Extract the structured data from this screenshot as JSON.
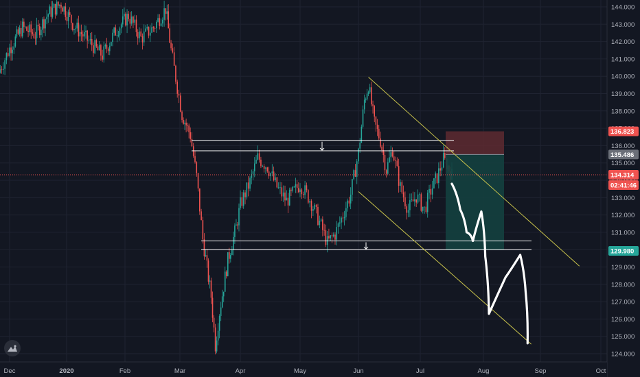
{
  "chart_data": {
    "type": "candlestick",
    "title": "",
    "xlabel": "",
    "ylabel": "",
    "ylim": [
      123.8,
      144.3
    ],
    "x_ticks": [
      "Dec",
      "2020",
      "Feb",
      "Mar",
      "Apr",
      "May",
      "Jun",
      "Jul",
      "Aug",
      "Sep",
      "Oct"
    ],
    "y_ticks": [
      124.0,
      125.0,
      126.0,
      127.0,
      128.0,
      129.0,
      130.0,
      131.0,
      132.0,
      133.0,
      134.0,
      135.0,
      136.0,
      137.0,
      138.0,
      139.0,
      140.0,
      141.0,
      142.0,
      143.0,
      144.0
    ],
    "price_path": [
      {
        "date": "Nov 25",
        "close": 140.2
      },
      {
        "date": "Dec 01",
        "close": 141.6
      },
      {
        "date": "Dec 08",
        "close": 142.8
      },
      {
        "date": "Dec 15",
        "close": 142.4
      },
      {
        "date": "Dec 22",
        "close": 143.6
      },
      {
        "date": "Dec 29",
        "close": 144.2
      },
      {
        "date": "Jan 05",
        "close": 142.9
      },
      {
        "date": "Jan 12",
        "close": 142.1
      },
      {
        "date": "Jan 20",
        "close": 141.2
      },
      {
        "date": "Jan 27",
        "close": 142.6
      },
      {
        "date": "Feb 03",
        "close": 143.5
      },
      {
        "date": "Feb 10",
        "close": 142.2
      },
      {
        "date": "Feb 17",
        "close": 142.8
      },
      {
        "date": "Feb 24",
        "close": 143.9
      },
      {
        "date": "Feb 27",
        "close": 141.5
      },
      {
        "date": "Mar 02",
        "close": 137.8
      },
      {
        "date": "Mar 06",
        "close": 136.6
      },
      {
        "date": "Mar 09",
        "close": 134.2
      },
      {
        "date": "Mar 12",
        "close": 130.6
      },
      {
        "date": "Mar 16",
        "close": 127.3
      },
      {
        "date": "Mar 18",
        "close": 124.5
      },
      {
        "date": "Mar 20",
        "close": 126.4
      },
      {
        "date": "Mar 24",
        "close": 129.4
      },
      {
        "date": "Mar 28",
        "close": 131.3
      },
      {
        "date": "Apr 01",
        "close": 132.6
      },
      {
        "date": "Apr 06",
        "close": 133.9
      },
      {
        "date": "Apr 10",
        "close": 135.3
      },
      {
        "date": "Apr 15",
        "close": 134.8
      },
      {
        "date": "Apr 20",
        "close": 133.6
      },
      {
        "date": "Apr 25",
        "close": 132.8
      },
      {
        "date": "May 01",
        "close": 133.8
      },
      {
        "date": "May 06",
        "close": 132.9
      },
      {
        "date": "May 11",
        "close": 131.6
      },
      {
        "date": "May 15",
        "close": 130.4
      },
      {
        "date": "May 19",
        "close": 130.9
      },
      {
        "date": "May 23",
        "close": 132.0
      },
      {
        "date": "May 27",
        "close": 133.2
      },
      {
        "date": "Jun 01",
        "close": 135.6
      },
      {
        "date": "Jun 04",
        "close": 138.6
      },
      {
        "date": "Jun 06",
        "close": 139.5
      },
      {
        "date": "Jun 09",
        "close": 137.3
      },
      {
        "date": "Jun 12",
        "close": 136.3
      },
      {
        "date": "Jun 15",
        "close": 134.6
      },
      {
        "date": "Jun 18",
        "close": 135.8
      },
      {
        "date": "Jun 22",
        "close": 133.6
      },
      {
        "date": "Jun 26",
        "close": 132.3
      },
      {
        "date": "Jun 30",
        "close": 133.1
      },
      {
        "date": "Jul 03",
        "close": 132.3
      },
      {
        "date": "Jul 06",
        "close": 133.4
      },
      {
        "date": "Jul 09",
        "close": 134.2
      },
      {
        "date": "Jul 12",
        "close": 135.2
      },
      {
        "date": "Jul 14",
        "close": 134.8
      },
      {
        "date": "Jul 16",
        "close": 134.3
      }
    ],
    "levels": {
      "last_price": "134.314",
      "countdown": "02:41:46",
      "stop": "136.823",
      "entry": "135.486",
      "target": "129.980"
    },
    "zones": [
      {
        "from": 135.7,
        "to": 136.3
      },
      {
        "from": 130.0,
        "to": 130.5
      }
    ],
    "channel": {
      "upper": [
        {
          "date": "Jun 06",
          "price": 139.95
        },
        {
          "date": "Sep 21",
          "price": 129.05
        }
      ],
      "lower": [
        {
          "date": "Jun 01",
          "price": 133.35
        },
        {
          "date": "Aug 27",
          "price": 124.55
        }
      ]
    },
    "projection": [
      {
        "date": "Jul 16",
        "price": 133.8
      },
      {
        "date": "Jul 20",
        "price": 132.3
      },
      {
        "date": "Jul 23",
        "price": 131.0
      },
      {
        "date": "Jul 26",
        "price": 130.5
      },
      {
        "date": "Jul 30",
        "price": 132.2
      },
      {
        "date": "Aug 02",
        "price": 129.6
      },
      {
        "date": "Aug 04",
        "price": 126.3
      },
      {
        "date": "Aug 13",
        "price": 128.4
      },
      {
        "date": "Aug 21",
        "price": 129.7
      },
      {
        "date": "Aug 24",
        "price": 127.5
      },
      {
        "date": "Aug 25",
        "price": 124.6
      }
    ],
    "colors": {
      "background": "#131722",
      "up": "#26a69a",
      "down": "#ef5350",
      "stop_zone": "#5e2a30",
      "target_zone": "#14403f",
      "channel": "#c8c24b",
      "last_price_line": "#e04c4c",
      "entry_tag": "#6b6f78"
    }
  }
}
